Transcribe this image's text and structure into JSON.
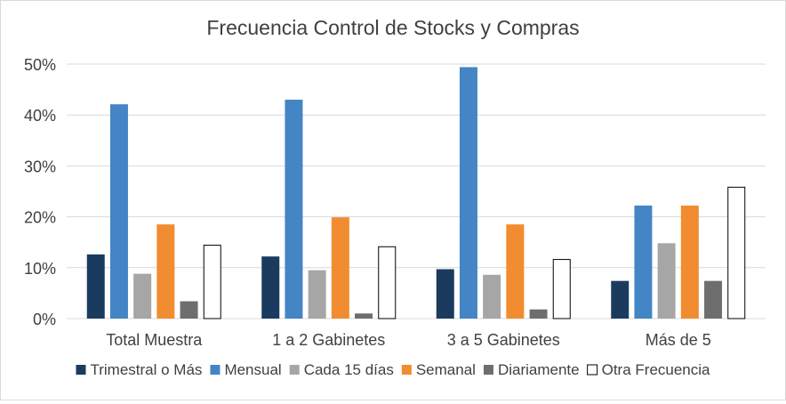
{
  "chart_data": {
    "type": "bar",
    "title": "Frecuencia Control de Stocks y Compras",
    "xlabel": "",
    "ylabel": "",
    "ylim": [
      0,
      0.5
    ],
    "yticks": [
      0,
      0.1,
      0.2,
      0.3,
      0.4,
      0.5
    ],
    "ytick_labels": [
      "0%",
      "10%",
      "20%",
      "30%",
      "40%",
      "50%"
    ],
    "grid": true,
    "legend_position": "bottom",
    "categories": [
      "Total Muestra",
      "1 a 2 Gabinetes",
      "3 a 5 Gabinetes",
      "Más de 5"
    ],
    "series": [
      {
        "name": "Trimestral o Más",
        "color": "#1b3b5e",
        "style": "filled",
        "values": [
          0.126,
          0.122,
          0.097,
          0.074
        ]
      },
      {
        "name": "Mensual",
        "color": "#4485c5",
        "style": "filled",
        "values": [
          0.421,
          0.43,
          0.494,
          0.222
        ]
      },
      {
        "name": "Cada 15 días",
        "color": "#a6a6a6",
        "style": "filled",
        "values": [
          0.088,
          0.095,
          0.086,
          0.148
        ]
      },
      {
        "name": "Semanal",
        "color": "#f28c30",
        "style": "filled",
        "values": [
          0.185,
          0.199,
          0.185,
          0.222
        ]
      },
      {
        "name": "Diariamente",
        "color": "#6e6e6e",
        "style": "filled",
        "values": [
          0.034,
          0.01,
          0.018,
          0.074
        ]
      },
      {
        "name": "Otra Frecuencia",
        "color": "#ffffff",
        "style": "outline",
        "values": [
          0.145,
          0.142,
          0.117,
          0.259
        ]
      }
    ]
  }
}
